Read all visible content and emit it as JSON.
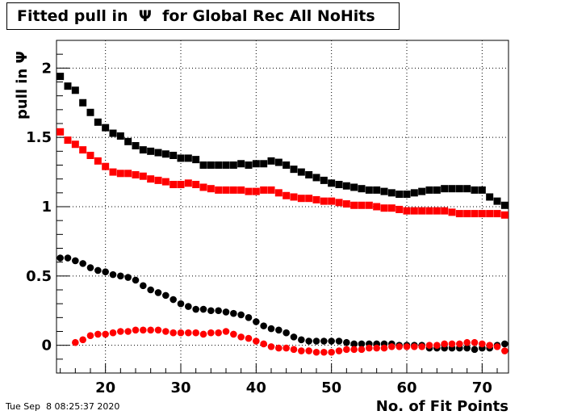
{
  "title": "Fitted pull in  Ψ  for Global Rec All NoHits",
  "timestamp": "Tue Sep  8 08:25:37 2020",
  "chart_data": {
    "type": "scatter",
    "title": "Fitted pull in  Ψ  for Global Rec All NoHits",
    "xlabel": "No. of Fit Points",
    "ylabel": "pull in Ψ",
    "xlim": [
      13.5,
      73.5
    ],
    "ylim": [
      -0.2,
      2.2
    ],
    "x_ticks": [
      20,
      30,
      40,
      50,
      60,
      70
    ],
    "y_ticks": [
      0,
      0.5,
      1,
      1.5,
      2
    ],
    "y_tick_labels": [
      "0",
      "0.5",
      "1",
      "1.5",
      "2"
    ],
    "grid": true,
    "x": [
      14,
      15,
      16,
      17,
      18,
      19,
      20,
      21,
      22,
      23,
      24,
      25,
      26,
      27,
      28,
      29,
      30,
      31,
      32,
      33,
      34,
      35,
      36,
      37,
      38,
      39,
      40,
      41,
      42,
      43,
      44,
      45,
      46,
      47,
      48,
      49,
      50,
      51,
      52,
      53,
      54,
      55,
      56,
      57,
      58,
      59,
      60,
      61,
      62,
      63,
      64,
      65,
      66,
      67,
      68,
      69,
      70,
      71,
      72,
      73
    ],
    "series": [
      {
        "color": "#000000",
        "marker": "square",
        "values": [
          1.94,
          1.87,
          1.84,
          1.75,
          1.68,
          1.61,
          1.57,
          1.53,
          1.51,
          1.47,
          1.44,
          1.41,
          1.4,
          1.39,
          1.38,
          1.37,
          1.35,
          1.35,
          1.34,
          1.3,
          1.3,
          1.3,
          1.3,
          1.3,
          1.31,
          1.3,
          1.31,
          1.31,
          1.33,
          1.32,
          1.3,
          1.27,
          1.25,
          1.23,
          1.21,
          1.19,
          1.17,
          1.16,
          1.15,
          1.14,
          1.13,
          1.12,
          1.12,
          1.11,
          1.1,
          1.09,
          1.09,
          1.1,
          1.11,
          1.12,
          1.12,
          1.13,
          1.13,
          1.13,
          1.13,
          1.12,
          1.12,
          1.07,
          1.04,
          1.01
        ]
      },
      {
        "color": "#ff0000",
        "marker": "square",
        "values": [
          1.54,
          1.48,
          1.45,
          1.41,
          1.37,
          1.33,
          1.29,
          1.25,
          1.24,
          1.24,
          1.23,
          1.22,
          1.2,
          1.19,
          1.18,
          1.16,
          1.16,
          1.17,
          1.16,
          1.14,
          1.13,
          1.12,
          1.12,
          1.12,
          1.12,
          1.11,
          1.11,
          1.12,
          1.12,
          1.1,
          1.08,
          1.07,
          1.06,
          1.06,
          1.05,
          1.04,
          1.04,
          1.03,
          1.02,
          1.01,
          1.01,
          1.01,
          1.0,
          0.99,
          0.99,
          0.98,
          0.97,
          0.97,
          0.97,
          0.97,
          0.97,
          0.97,
          0.96,
          0.95,
          0.95,
          0.95,
          0.95,
          0.95,
          0.95,
          0.94
        ]
      },
      {
        "color": "#000000",
        "marker": "circle",
        "values": [
          0.63,
          0.63,
          0.61,
          0.59,
          0.56,
          0.54,
          0.53,
          0.51,
          0.5,
          0.49,
          0.47,
          0.43,
          0.4,
          0.38,
          0.36,
          0.33,
          0.3,
          0.28,
          0.26,
          0.26,
          0.25,
          0.25,
          0.24,
          0.23,
          0.22,
          0.2,
          0.17,
          0.14,
          0.12,
          0.11,
          0.09,
          0.06,
          0.04,
          0.03,
          0.03,
          0.03,
          0.03,
          0.03,
          0.02,
          0.01,
          0.01,
          0.01,
          0.01,
          0.01,
          0.01,
          0.0,
          0.0,
          0.0,
          0.0,
          -0.02,
          -0.02,
          -0.02,
          -0.02,
          -0.02,
          -0.02,
          -0.03,
          -0.02,
          -0.02,
          0.0,
          0.01
        ]
      },
      {
        "color": "#ff0000",
        "marker": "circle",
        "values": [
          null,
          null,
          0.02,
          0.04,
          0.07,
          0.08,
          0.08,
          0.09,
          0.1,
          0.1,
          0.11,
          0.11,
          0.11,
          0.11,
          0.1,
          0.09,
          0.09,
          0.09,
          0.09,
          0.08,
          0.09,
          0.09,
          0.1,
          0.08,
          0.06,
          0.05,
          0.03,
          0.01,
          -0.01,
          -0.02,
          -0.02,
          -0.03,
          -0.04,
          -0.04,
          -0.05,
          -0.05,
          -0.05,
          -0.04,
          -0.03,
          -0.03,
          -0.03,
          -0.02,
          -0.02,
          -0.02,
          -0.01,
          -0.01,
          -0.01,
          -0.01,
          -0.01,
          0.0,
          0.0,
          0.01,
          0.01,
          0.01,
          0.02,
          0.02,
          0.01,
          0.0,
          -0.01,
          -0.04
        ]
      }
    ]
  }
}
